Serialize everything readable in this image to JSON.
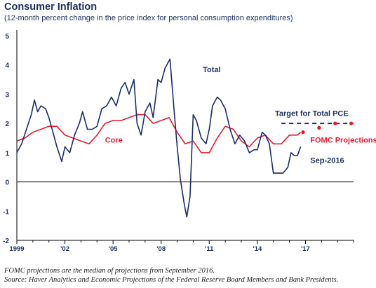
{
  "header": {
    "title": "Consumer Inflation",
    "subtitle": "(12-month percent change in the price index for personal consumption expenditures)"
  },
  "footnotes": [
    "FOMC projections are the median of projections from September 2016.",
    "Source: Haver Analytics and Economic Projections of the Federal Reserve Board Members and Bank Presidents."
  ],
  "chart_data": {
    "type": "line",
    "title": "Consumer Inflation",
    "subtitle": "(12-month percent change in the price index for personal consumption expenditures)",
    "xlim": [
      1999,
      2020
    ],
    "ylim": [
      -2,
      5
    ],
    "y_ticks": [
      -2,
      -1,
      0,
      1,
      2,
      3,
      4,
      5
    ],
    "x_ticks": [
      {
        "value": 1999,
        "label": "1999"
      },
      {
        "value": 2002,
        "label": "'02"
      },
      {
        "value": 2005,
        "label": "'05"
      },
      {
        "value": 2008,
        "label": "'08"
      },
      {
        "value": 2011,
        "label": "'11"
      },
      {
        "value": 2014,
        "label": "'14"
      },
      {
        "value": 2017,
        "label": "'17"
      }
    ],
    "grid": false,
    "zero_line": true,
    "colors": {
      "total": "#1b2a6b",
      "core": "#e8192c",
      "target": "#1f2f5c",
      "text": "#1f2f5c"
    },
    "series": [
      {
        "name": "Total",
        "x": [
          1999.0,
          1999.3,
          1999.6,
          1999.9,
          2000.1,
          2000.3,
          2000.5,
          2000.8,
          2001.0,
          2001.3,
          2001.5,
          2001.8,
          2002.0,
          2002.3,
          2002.6,
          2002.9,
          2003.1,
          2003.4,
          2003.7,
          2004.0,
          2004.3,
          2004.6,
          2004.9,
          2005.2,
          2005.5,
          2005.75,
          2006.0,
          2006.3,
          2006.5,
          2006.75,
          2007.0,
          2007.3,
          2007.5,
          2007.8,
          2008.0,
          2008.25,
          2008.55,
          2008.8,
          2009.0,
          2009.2,
          2009.45,
          2009.6,
          2009.8,
          2010.0,
          2010.2,
          2010.5,
          2010.8,
          2011.0,
          2011.2,
          2011.5,
          2011.7,
          2012.0,
          2012.3,
          2012.6,
          2012.9,
          2013.2,
          2013.5,
          2013.8,
          2014.0,
          2014.3,
          2014.5,
          2014.75,
          2015.0,
          2015.3,
          2015.6,
          2015.9,
          2016.1,
          2016.3,
          2016.5,
          2016.7
        ],
        "values": [
          1.0,
          1.3,
          1.8,
          2.3,
          2.8,
          2.4,
          2.6,
          2.5,
          2.2,
          1.6,
          1.2,
          0.7,
          1.2,
          1.0,
          1.6,
          2.0,
          2.4,
          1.8,
          1.8,
          1.9,
          2.5,
          2.6,
          2.9,
          2.6,
          3.2,
          3.4,
          3.0,
          3.5,
          2.0,
          1.6,
          2.4,
          2.7,
          2.2,
          3.5,
          3.4,
          3.9,
          4.2,
          2.5,
          1.2,
          0.1,
          -0.8,
          -1.2,
          -0.5,
          2.3,
          2.1,
          1.5,
          1.3,
          1.8,
          2.6,
          2.9,
          2.8,
          2.5,
          1.8,
          1.3,
          1.6,
          1.4,
          1.0,
          1.1,
          1.1,
          1.7,
          1.6,
          1.3,
          0.3,
          0.3,
          0.3,
          0.5,
          1.0,
          0.9,
          0.9,
          1.2
        ]
      },
      {
        "name": "Core",
        "x": [
          1999.0,
          1999.5,
          2000.0,
          2000.5,
          2001.0,
          2001.5,
          2002.0,
          2002.5,
          2003.0,
          2003.5,
          2004.0,
          2004.5,
          2005.0,
          2005.5,
          2006.0,
          2006.5,
          2007.0,
          2007.5,
          2008.0,
          2008.5,
          2009.0,
          2009.5,
          2010.0,
          2010.5,
          2011.0,
          2011.5,
          2012.0,
          2012.5,
          2013.0,
          2013.5,
          2014.0,
          2014.5,
          2015.0,
          2015.5,
          2016.0,
          2016.5,
          2016.7
        ],
        "values": [
          1.4,
          1.5,
          1.7,
          1.8,
          1.9,
          1.9,
          1.6,
          1.5,
          1.4,
          1.3,
          1.6,
          2.0,
          2.1,
          2.1,
          2.2,
          2.3,
          2.3,
          2.0,
          2.1,
          2.2,
          1.7,
          1.3,
          1.4,
          1.0,
          1.0,
          1.5,
          1.9,
          1.8,
          1.4,
          1.2,
          1.5,
          1.6,
          1.3,
          1.3,
          1.6,
          1.6,
          1.7
        ]
      }
    ],
    "target": {
      "label": "Target for Total PCE",
      "value": 2.0,
      "x_start": 2015.5,
      "x_end": 2020.0
    },
    "fomc_projections": {
      "label": "FOMC Projections",
      "x": [
        2016.85,
        2017.85,
        2018.85,
        2019.85
      ],
      "values": [
        1.7,
        1.85,
        2.0,
        2.0
      ]
    },
    "annotations": [
      {
        "text": "Total",
        "x": 2010.6,
        "y": 3.75,
        "color": "#1f2f5c"
      },
      {
        "text": "Core",
        "x": 2004.5,
        "y": 1.35,
        "color": "#e8192c"
      },
      {
        "text": "Target for Total PCE",
        "x": 2015.1,
        "y": 2.25,
        "color": "#1f2f5c"
      },
      {
        "text": "FOMC Projections",
        "x": 2017.3,
        "y": 1.35,
        "color": "#e8192c"
      },
      {
        "text": "Sep-2016",
        "x": 2017.3,
        "y": 0.65,
        "color": "#1f2f5c"
      }
    ]
  }
}
